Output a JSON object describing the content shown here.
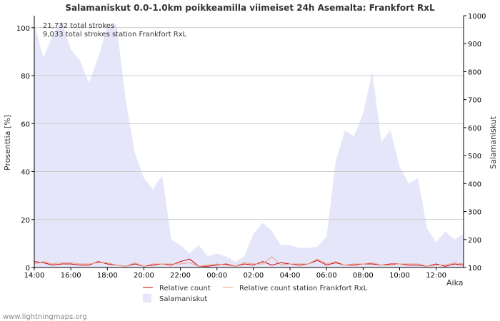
{
  "chart_data": {
    "type": "area",
    "title": "Salamaniskut 0.0-1.0km poikkeamilla viimeiset 24h Asemalta: Frankfort RxL",
    "xlabel": "Aika",
    "ylabel_left": "Prosenttia   [%]",
    "ylabel_right": "Salamaniskut",
    "ylim_left": [
      0,
      105
    ],
    "ylim_right": [
      100,
      1000
    ],
    "yticks_left": [
      "0",
      "20",
      "40",
      "60",
      "80",
      "100"
    ],
    "yticks_right": [
      "100",
      "200",
      "300",
      "400",
      "500",
      "600",
      "700",
      "800",
      "900",
      "1000"
    ],
    "x_tick_labels": [
      "14:00",
      "16:00",
      "18:00",
      "20:00",
      "22:00",
      "00:00",
      "02:00",
      "04:00",
      "06:00",
      "08:00",
      "10:00",
      "12:00"
    ],
    "x_start_hour": 14,
    "x_hours": [
      0,
      0.5,
      1,
      1.5,
      2,
      2.5,
      3,
      3.5,
      4,
      4.5,
      5,
      5.5,
      6,
      6.5,
      7,
      7.5,
      8,
      8.5,
      9,
      9.5,
      10,
      10.5,
      11,
      11.5,
      12,
      12.5,
      13,
      13.5,
      14,
      14.5,
      15,
      15.5,
      16,
      16.5,
      17,
      17.5,
      18,
      18.5,
      19,
      19.5,
      20,
      20.5,
      21,
      21.5,
      22,
      22.5,
      23,
      23.5
    ],
    "annotations": [
      "21,732 total strokes",
      "9,033 total strokes station Frankfort RxL"
    ],
    "series": [
      {
        "name": "Salamaniskut",
        "axis": "right",
        "color": "#e6e6fa",
        "values": [
          970,
          850,
          930,
          980,
          880,
          840,
          760,
          850,
          960,
          970,
          700,
          510,
          420,
          380,
          430,
          200,
          180,
          150,
          180,
          140,
          150,
          140,
          120,
          140,
          220,
          260,
          230,
          180,
          180,
          170,
          170,
          175,
          210,
          480,
          590,
          570,
          650,
          800,
          550,
          590,
          460,
          400,
          420,
          240,
          190,
          230,
          200,
          220
        ]
      },
      {
        "name": "Relative count",
        "axis": "left",
        "color": "#cc0000",
        "values": [
          2.5,
          2,
          1,
          1.5,
          1.5,
          1,
          1,
          2.5,
          1.5,
          1,
          0.5,
          1.5,
          0.5,
          1,
          1.5,
          1,
          2.5,
          3.5,
          0.5,
          0.5,
          1,
          1.5,
          0.5,
          1.5,
          1,
          2.5,
          1,
          2,
          1.5,
          1,
          1.5,
          3,
          1,
          2,
          1,
          1,
          1.5,
          1.5,
          1,
          1.5,
          1.5,
          1,
          1,
          0.5,
          1.5,
          0.5,
          1.5,
          1
        ]
      },
      {
        "name": "Relative count station Frankfort RxL",
        "axis": "left",
        "color": "#f0a080",
        "values": [
          1.5,
          2.5,
          1.5,
          2,
          2,
          1.5,
          1.5,
          2,
          2,
          1,
          0.5,
          2,
          0.5,
          1.5,
          1.5,
          1.5,
          1.5,
          2,
          0.5,
          1,
          1.5,
          1,
          0.5,
          2,
          1.5,
          1.5,
          4.5,
          1,
          1.5,
          1.5,
          1.5,
          3.5,
          1.5,
          2.5,
          1,
          1.5,
          1.5,
          2,
          1,
          1,
          1.5,
          1.5,
          1.5,
          0.5,
          1,
          1,
          2,
          1.5
        ]
      }
    ],
    "legend": [
      "Relative count",
      "Relative count station Frankfort RxL",
      "Salamaniskut"
    ]
  },
  "watermark": "www.lightningmaps.org"
}
